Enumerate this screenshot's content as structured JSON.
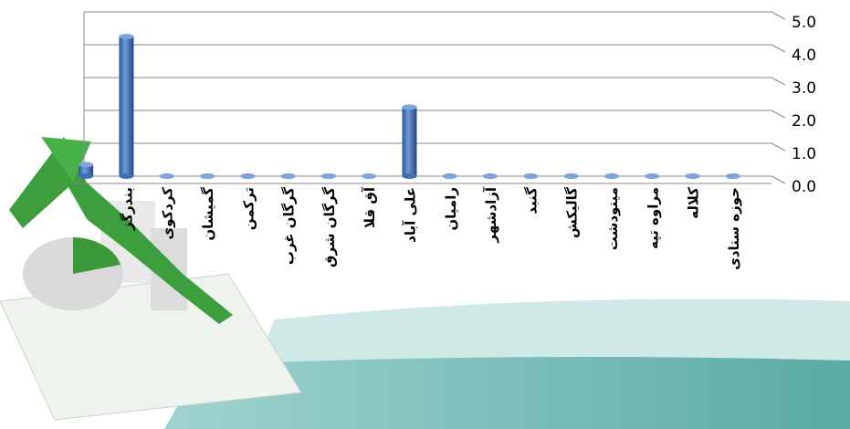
{
  "chart_data": {
    "type": "bar",
    "categories": [
      null,
      "بندرگز",
      "کردکوی",
      "گمیشان",
      "ترکمن",
      "گرگان غرب",
      "گرگان شرق",
      "آق قلا",
      "علی آباد",
      "رامیان",
      "آزادشهر",
      "گنبد",
      "گالیکش",
      "مینودشت",
      "مراوه تپه",
      "کلاله",
      "حوزه ستادی"
    ],
    "values": [
      0.35,
      4.25,
      0,
      0,
      0,
      0,
      0,
      0,
      2.1,
      0,
      0,
      0,
      0,
      0,
      0,
      0,
      0
    ],
    "color": "#3f6fb5",
    "ylim": [
      0,
      5
    ],
    "yticks": [
      {
        "value": 0,
        "label": "0.0"
      },
      {
        "value": 1,
        "label": "1.0"
      },
      {
        "value": 2,
        "label": "2.0"
      },
      {
        "value": 3,
        "label": "3.0"
      },
      {
        "value": 4,
        "label": "4.0"
      },
      {
        "value": 5,
        "label": "5.0"
      }
    ],
    "grid": true
  }
}
